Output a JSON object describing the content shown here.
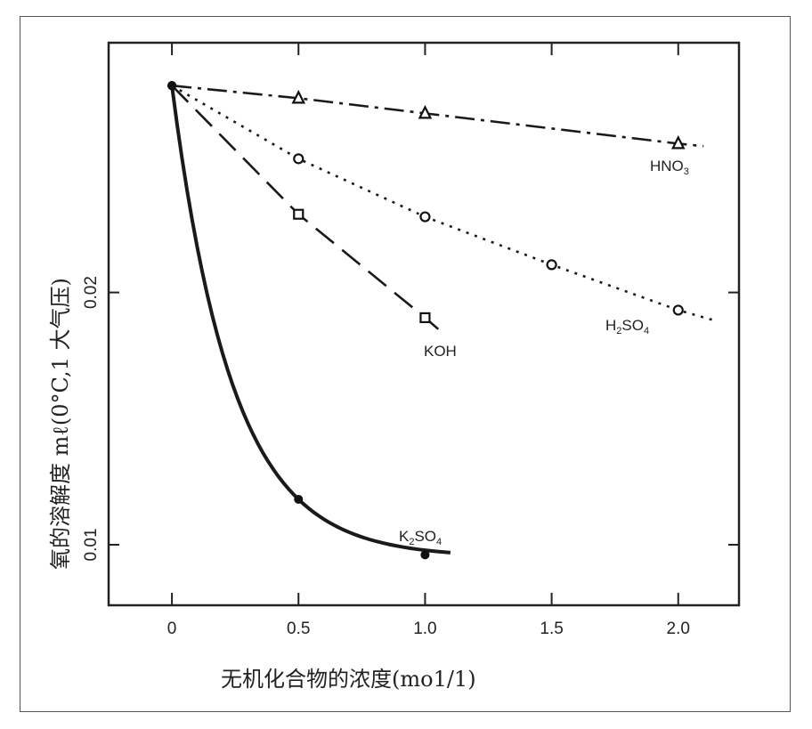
{
  "chart_data": {
    "type": "line",
    "title": "",
    "xlabel": "无机化合物的浓度(mo1/1)",
    "ylabel": "氧的溶解度 mℓ(0°C,1 大气压)",
    "xlim": [
      -0.25,
      2.24
    ],
    "ylim": [
      0.0076,
      0.0299
    ],
    "x_ticks": [
      0,
      0.5,
      1.0,
      1.5,
      2.0
    ],
    "x_tick_labels": [
      "0",
      "0.5",
      "1.0",
      "1.5",
      "2.0"
    ],
    "y_ticks": [
      0.01,
      0.02
    ],
    "y_tick_labels": [
      "0.01",
      "0.02"
    ],
    "grid": false,
    "series": [
      {
        "name": "HNO3",
        "label_main": "HNO",
        "label_sub": "3",
        "marker": "triangle",
        "style": "dashdot",
        "x": [
          0,
          0.5,
          1.0,
          2.0
        ],
        "y": [
          0.0282,
          0.0277,
          0.0271,
          0.0259
        ],
        "line_end": [
          2.1,
          0.0258
        ]
      },
      {
        "name": "H2SO4",
        "label_main": "H",
        "label_sub": "2",
        "label_rest": "SO",
        "label_sub2": "4",
        "marker": "circle",
        "style": "dotted",
        "x": [
          0,
          0.5,
          1.0,
          1.5,
          2.0
        ],
        "y": [
          0.0282,
          0.0253,
          0.023,
          0.0211,
          0.0193
        ],
        "line_end": [
          2.14,
          0.0189
        ]
      },
      {
        "name": "KOH",
        "label_main": "KOH",
        "marker": "square",
        "style": "dashed",
        "x": [
          0,
          0.5,
          1.0
        ],
        "y": [
          0.0282,
          0.0231,
          0.019
        ],
        "line_end": [
          1.08,
          0.0183
        ]
      },
      {
        "name": "K2SO4",
        "label_main": "K",
        "label_sub": "2",
        "label_rest": "SO",
        "label_sub2": "4",
        "marker": "filled-circle",
        "style": "solid",
        "x": [
          0,
          0.5,
          1.0
        ],
        "y": [
          0.0282,
          0.0118,
          0.0096
        ],
        "line_end": [
          1.1,
          0.0096
        ]
      }
    ]
  }
}
